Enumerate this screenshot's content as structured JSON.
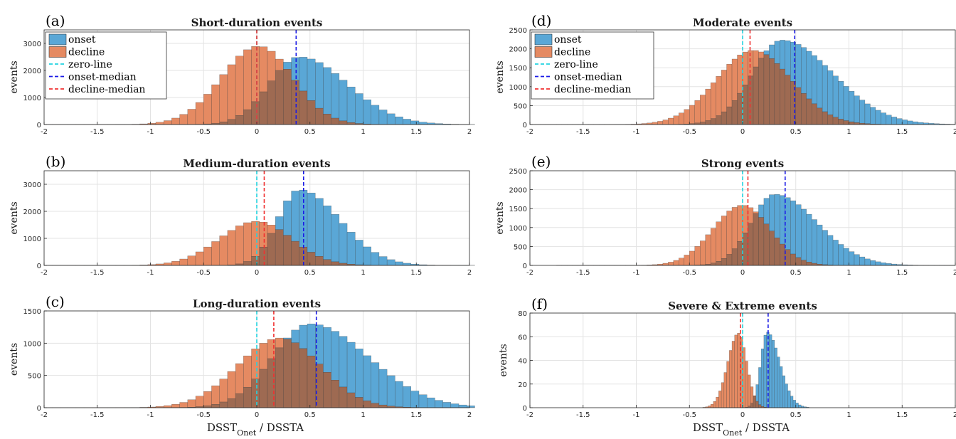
{
  "colors": {
    "onset": "#5aa7d6",
    "decline": "#e58a62",
    "overlap": "#9e6a52",
    "zero_line": "#22d3e0",
    "onset_median": "#1a1ae6",
    "decline_median": "#f03030",
    "grid": "#e3e3e3",
    "axis": "#262626"
  },
  "legend": {
    "items": [
      {
        "key": "onset",
        "label": "onset",
        "type": "patch"
      },
      {
        "key": "decline",
        "label": "decline",
        "type": "patch"
      },
      {
        "key": "zero_line",
        "label": "zero-line",
        "type": "line"
      },
      {
        "key": "onset_median",
        "label": "onset-median",
        "type": "line"
      },
      {
        "key": "decline_median",
        "label": "decline-median",
        "type": "line"
      }
    ]
  },
  "xaxis": {
    "label_main": "DSST",
    "label_sub": "Onet",
    "label_rest": " / DSSTA",
    "xlim": [
      -2,
      2
    ],
    "ticks": [
      -2,
      -1.5,
      -1,
      -0.5,
      0,
      0.5,
      1,
      1.5,
      2
    ],
    "tick_labels": [
      "-2",
      "-1.5",
      "-1",
      "-0.5",
      "0",
      "0.5",
      "1",
      "1.5",
      "2"
    ]
  },
  "chart_data": [
    {
      "type": "bar",
      "panel": "(a)",
      "title": "Short-duration events",
      "ylabel": "events",
      "ylim": [
        0,
        3500
      ],
      "yticks": [
        0,
        1000,
        2000,
        3000
      ],
      "bin_width": 0.075,
      "zero_line": 0,
      "onset_median": 0.37,
      "decline_median": 0.0,
      "onset": {
        "center": 0.4,
        "peak": 2500,
        "sigma_left": 0.28,
        "sigma_right": 0.45,
        "tail": 0.9
      },
      "decline": {
        "center": 0.02,
        "peak": 2900,
        "sigma_left": 0.35,
        "sigma_right": 0.32,
        "tail": 0.9
      }
    },
    {
      "type": "bar",
      "panel": "(b)",
      "title": "Medium-duration events",
      "ylabel": "events",
      "ylim": [
        0,
        3500
      ],
      "yticks": [
        0,
        1000,
        2000,
        3000
      ],
      "bin_width": 0.075,
      "zero_line": 0,
      "onset_median": 0.44,
      "decline_median": 0.07,
      "onset": {
        "center": 0.4,
        "peak": 2800,
        "sigma_left": 0.2,
        "sigma_right": 0.38,
        "tail": 0.9
      },
      "decline": {
        "center": 0.0,
        "peak": 1630,
        "sigma_left": 0.35,
        "sigma_right": 0.33,
        "tail": 0.9
      }
    },
    {
      "type": "bar",
      "panel": "(c)",
      "title": "Long-duration events",
      "ylabel": "events",
      "ylim": [
        0,
        1500
      ],
      "yticks": [
        0,
        500,
        1000,
        1500
      ],
      "bin_width": 0.075,
      "zero_line": 0,
      "onset_median": 0.56,
      "decline_median": 0.16,
      "onset": {
        "center": 0.5,
        "peak": 1300,
        "sigma_left": 0.35,
        "sigma_right": 0.55,
        "tail": 0.9
      },
      "decline": {
        "center": 0.22,
        "peak": 1080,
        "sigma_left": 0.4,
        "sigma_right": 0.38,
        "tail": 0.9
      }
    },
    {
      "type": "bar",
      "panel": "(d)",
      "title": "Moderate events",
      "ylabel": "events",
      "ylim": [
        0,
        2500
      ],
      "yticks": [
        0,
        500,
        1000,
        1500,
        2000,
        2500
      ],
      "bin_width": 0.05,
      "zero_line": 0,
      "onset_median": 0.49,
      "decline_median": 0.07,
      "onset": {
        "center": 0.37,
        "peak": 2230,
        "sigma_left": 0.28,
        "sigma_right": 0.48,
        "tail": 0.9
      },
      "decline": {
        "center": 0.1,
        "peak": 1960,
        "sigma_left": 0.35,
        "sigma_right": 0.36,
        "tail": 0.9
      }
    },
    {
      "type": "bar",
      "panel": "(e)",
      "title": "Strong events",
      "ylabel": "events",
      "ylim": [
        0,
        2500
      ],
      "yticks": [
        0,
        500,
        1000,
        1500,
        2000,
        2500
      ],
      "bin_width": 0.05,
      "zero_line": 0,
      "onset_median": 0.4,
      "decline_median": 0.05,
      "onset": {
        "center": 0.3,
        "peak": 1880,
        "sigma_left": 0.22,
        "sigma_right": 0.4,
        "tail": 0.9
      },
      "decline": {
        "center": 0.0,
        "peak": 1590,
        "sigma_left": 0.28,
        "sigma_right": 0.26,
        "tail": 0.9
      }
    },
    {
      "type": "bar",
      "panel": "(f)",
      "title": "Severe & Extreme events",
      "ylabel": "events",
      "ylim": [
        0,
        80
      ],
      "yticks": [
        0,
        20,
        40,
        60,
        80
      ],
      "bin_width": 0.025,
      "zero_line": 0,
      "onset_median": 0.24,
      "decline_median": -0.02,
      "onset": {
        "center": 0.23,
        "peak": 64,
        "sigma_left": 0.06,
        "sigma_right": 0.12,
        "tail": 0.05
      },
      "decline": {
        "center": -0.04,
        "peak": 63,
        "sigma_left": 0.1,
        "sigma_right": 0.08,
        "tail": 0.05
      }
    }
  ]
}
